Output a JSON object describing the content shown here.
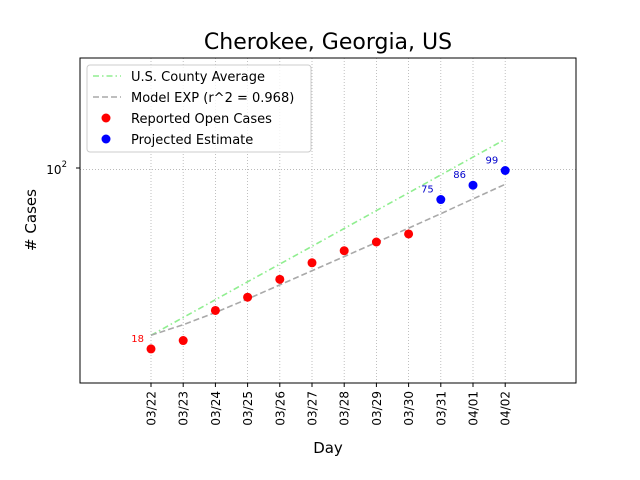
{
  "chart_data": {
    "type": "line",
    "title": "Cherokee, Georgia, US",
    "xlabel": "Day",
    "ylabel": "# Cases",
    "yscale": "log",
    "ylim": [
      13,
      290
    ],
    "grid": true,
    "legend_position": "top-left",
    "x": [
      "03/22",
      "03/23",
      "03/24",
      "03/25",
      "03/26",
      "03/27",
      "03/28",
      "03/29",
      "03/30",
      "03/31",
      "04/01",
      "04/02"
    ],
    "y_tick_label": "10",
    "y_tick_exponent": "2",
    "series": [
      {
        "name": "U.S. County Average",
        "style": "dash-dot",
        "color": "#90ee90",
        "values": [
          20.5,
          24.3,
          28.8,
          34.2,
          40.5,
          48.0,
          56.9,
          67.5,
          80.0,
          94.9,
          112.5,
          133.4
        ]
      },
      {
        "name": "Model EXP (r^2 = 0.968)",
        "style": "dashed",
        "color": "#a9a9a9",
        "values": [
          20.5,
          22.7,
          25.5,
          29.0,
          33.2,
          38.0,
          43.5,
          49.8,
          57.1,
          65.5,
          75.5,
          86.8
        ]
      },
      {
        "name": "Reported Open Cases",
        "style": "markers",
        "color": "#ff0000",
        "values": [
          18,
          19.5,
          26,
          29.5,
          35,
          41,
          46,
          50,
          54,
          null,
          null,
          null
        ]
      },
      {
        "name": "Projected Estimate",
        "style": "markers",
        "color": "#0000ff",
        "values": [
          null,
          null,
          null,
          null,
          null,
          null,
          null,
          null,
          null,
          75,
          86,
          99
        ]
      }
    ],
    "annotations": [
      {
        "x": "03/22",
        "text": "18",
        "color": "#ff0000"
      },
      {
        "x": "03/31",
        "text": "75",
        "color": "#0000cc"
      },
      {
        "x": "04/01",
        "text": "86",
        "color": "#0000cc"
      },
      {
        "x": "04/02",
        "text": "99",
        "color": "#0000cc"
      }
    ]
  }
}
